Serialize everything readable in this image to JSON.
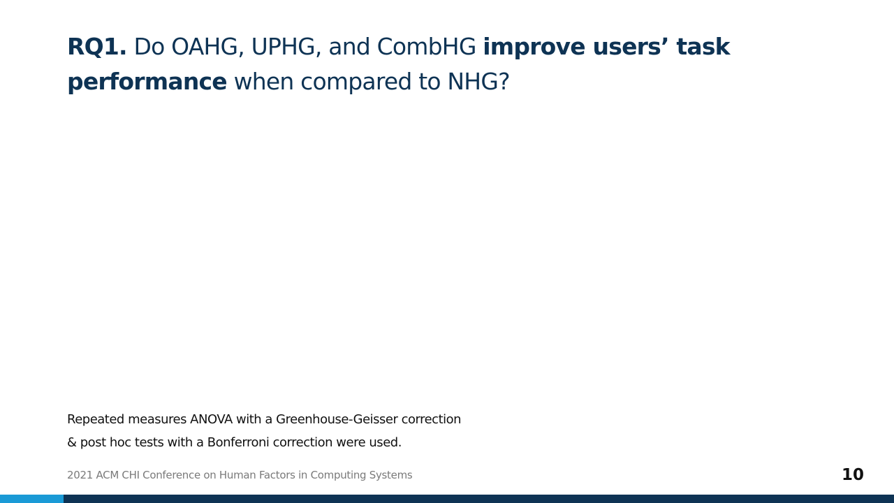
{
  "title": {
    "rq_label": "RQ1.",
    "part1": " Do OAHG, UPHG, and CombHG ",
    "emphasis": "improve users’ task performance",
    "part2": " when compared to NHG?"
  },
  "notes": {
    "line1": "Repeated measures ANOVA with a Greenhouse-Geisser correction",
    "line2": "& post hoc tests with a Bonferroni correction were used."
  },
  "footer": {
    "conference": "2021 ACM CHI Conference on Human Factors in Computing Systems",
    "page_number": "10"
  },
  "colors": {
    "title": "#0e3354",
    "bar": "#0e3354",
    "bar_accent": "#1a9ad6"
  }
}
